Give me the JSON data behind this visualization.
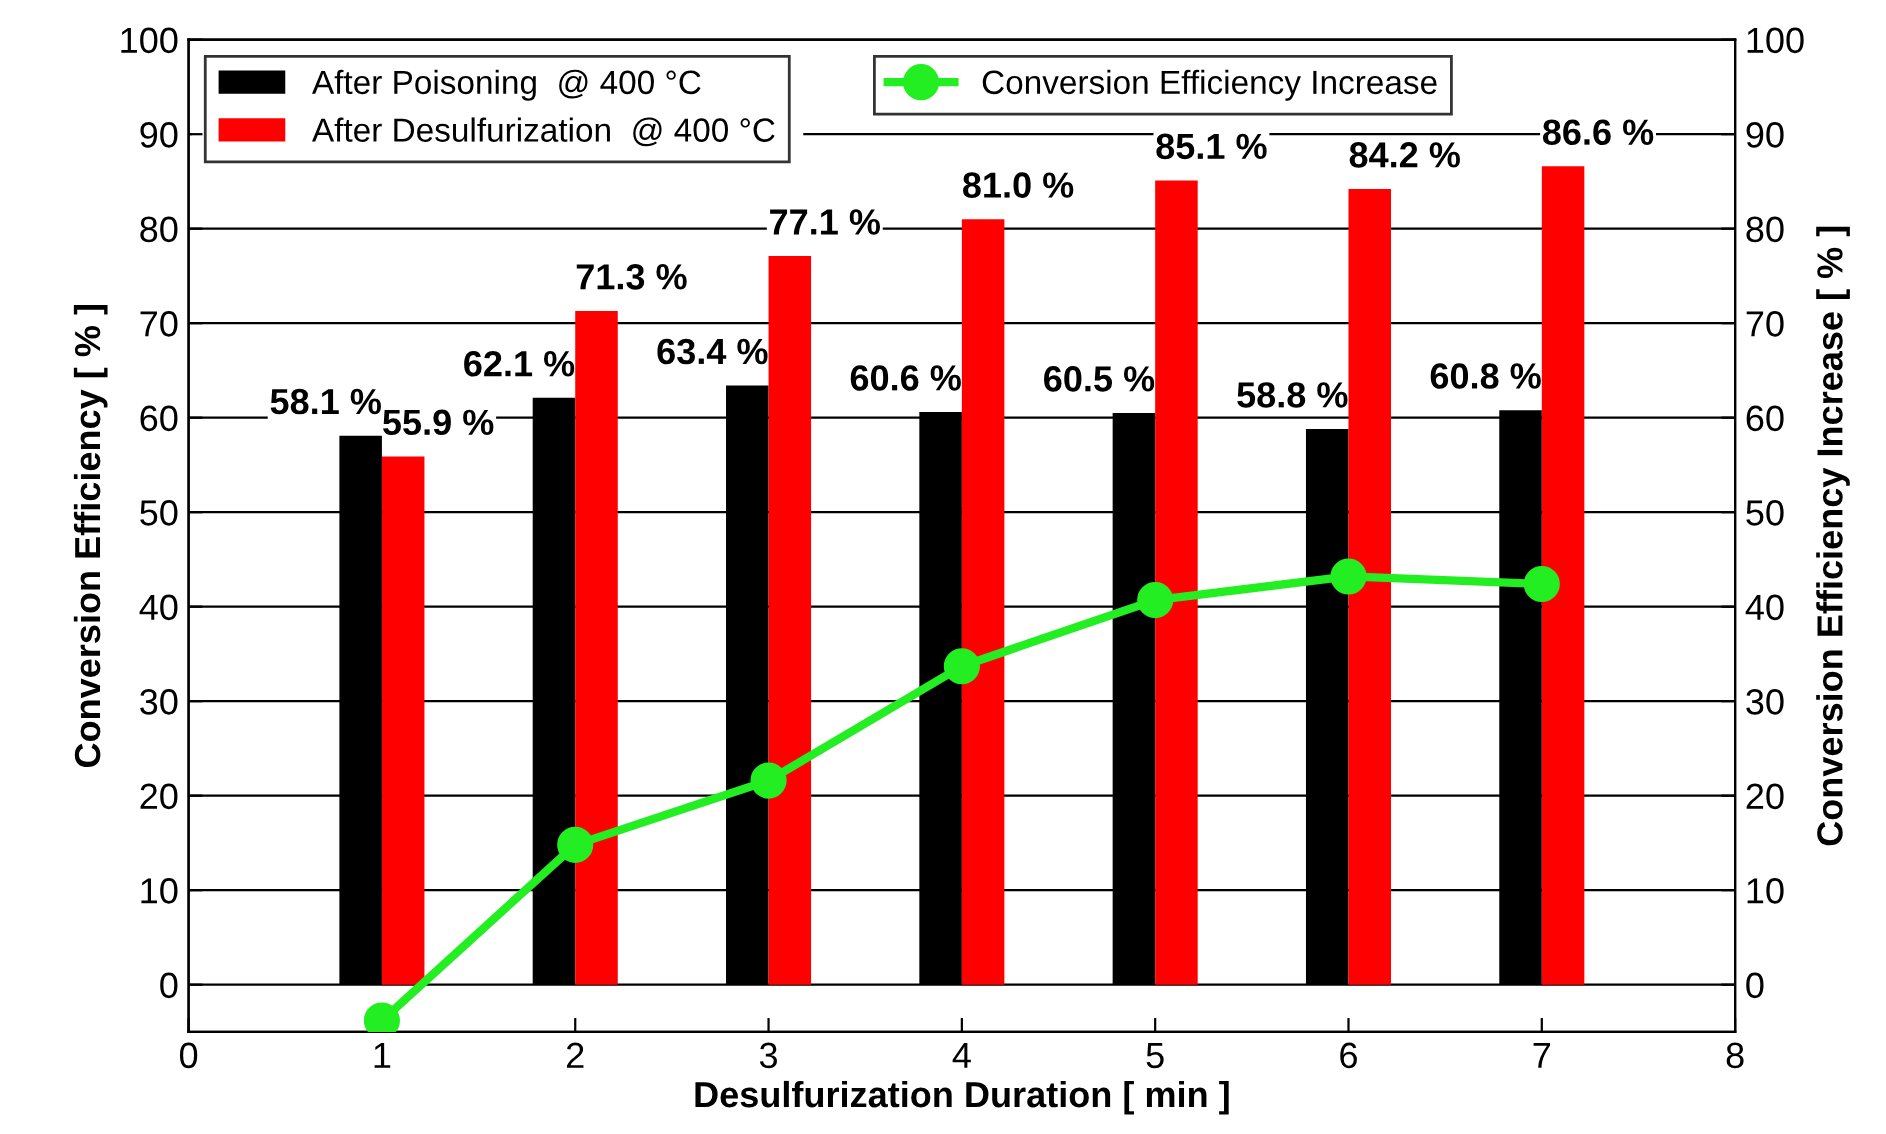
{
  "chart_data": {
    "type": "bar",
    "xlabel": "Desulfurization Duration [ min ]",
    "ylabel": "Conversion Efficiency [ % ]",
    "y2label": "Conversion Efficiency Increase [ % ]",
    "x": [
      1,
      2,
      3,
      4,
      5,
      6,
      7
    ],
    "series": [
      {
        "name": "After Poisoning  @ 400 °C",
        "color": "#000000",
        "values": [
          58.1,
          62.1,
          63.4,
          60.6,
          60.5,
          58.8,
          60.8
        ],
        "value_labels": [
          "58.1 %",
          "62.1 %",
          "63.4 %",
          "60.6 %",
          "60.5 %",
          "58.8 %",
          "60.8 %"
        ]
      },
      {
        "name": "After Desulfurization  @ 400 °C",
        "color": "#ff0000",
        "values": [
          55.9,
          71.3,
          77.1,
          81.0,
          85.1,
          84.2,
          86.6
        ],
        "value_labels": [
          "55.9 %",
          "71.3 %",
          "77.1 %",
          "81.0 %",
          "85.1 %",
          "84.2 %",
          "86.6 %"
        ]
      },
      {
        "name": "Conversion Efficiency Increase",
        "type": "line",
        "axis": "y2",
        "color": "#22ee22",
        "marker": "circle",
        "values": [
          -3.8,
          14.8,
          21.6,
          33.7,
          40.7,
          43.2,
          42.4
        ]
      }
    ],
    "xlim": [
      0,
      8
    ],
    "xticks": [
      0,
      1,
      2,
      3,
      4,
      5,
      6,
      7,
      8
    ],
    "ylim": [
      -5,
      100
    ],
    "yticks": [
      0,
      10,
      20,
      30,
      40,
      50,
      60,
      70,
      80,
      90,
      100
    ],
    "y2lim": [
      -5,
      100
    ],
    "y2ticks": [
      0,
      10,
      20,
      30,
      40,
      50,
      60,
      70,
      80,
      90,
      100
    ],
    "grid": "y",
    "legend": "top"
  }
}
